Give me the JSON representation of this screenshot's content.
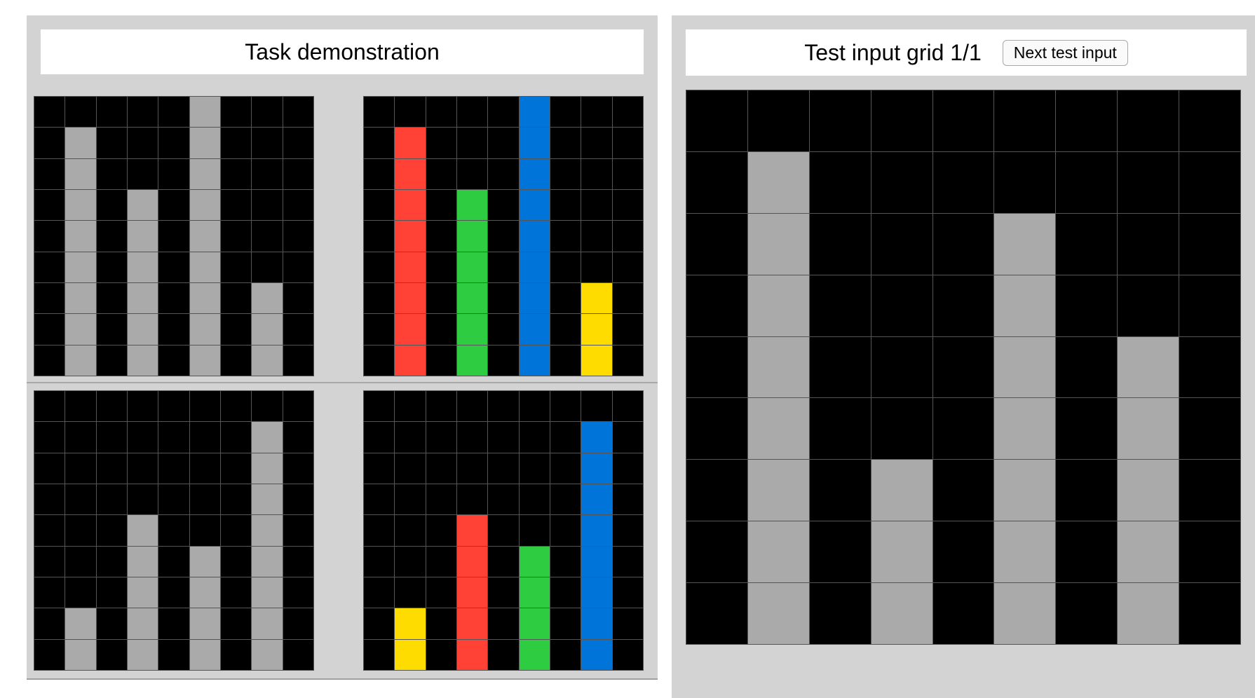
{
  "demo_panel": {
    "title": "Task demonstration"
  },
  "test_panel": {
    "title": "Test input grid 1/1",
    "next_button_label": "Next test input"
  },
  "palette": {
    "0": "#000000",
    "1": "#0074d9",
    "2": "#ff4136",
    "3": "#2ecc40",
    "4": "#ffdc00",
    "5": "#aaaaaa"
  },
  "grids": {
    "demo_pair1_input": [
      [
        0,
        0,
        0,
        0,
        0,
        5,
        0,
        0,
        0
      ],
      [
        0,
        5,
        0,
        0,
        0,
        5,
        0,
        0,
        0
      ],
      [
        0,
        5,
        0,
        0,
        0,
        5,
        0,
        0,
        0
      ],
      [
        0,
        5,
        0,
        5,
        0,
        5,
        0,
        0,
        0
      ],
      [
        0,
        5,
        0,
        5,
        0,
        5,
        0,
        0,
        0
      ],
      [
        0,
        5,
        0,
        5,
        0,
        5,
        0,
        0,
        0
      ],
      [
        0,
        5,
        0,
        5,
        0,
        5,
        0,
        5,
        0
      ],
      [
        0,
        5,
        0,
        5,
        0,
        5,
        0,
        5,
        0
      ],
      [
        0,
        5,
        0,
        5,
        0,
        5,
        0,
        5,
        0
      ]
    ],
    "demo_pair1_output": [
      [
        0,
        0,
        0,
        0,
        0,
        1,
        0,
        0,
        0
      ],
      [
        0,
        2,
        0,
        0,
        0,
        1,
        0,
        0,
        0
      ],
      [
        0,
        2,
        0,
        0,
        0,
        1,
        0,
        0,
        0
      ],
      [
        0,
        2,
        0,
        3,
        0,
        1,
        0,
        0,
        0
      ],
      [
        0,
        2,
        0,
        3,
        0,
        1,
        0,
        0,
        0
      ],
      [
        0,
        2,
        0,
        3,
        0,
        1,
        0,
        0,
        0
      ],
      [
        0,
        2,
        0,
        3,
        0,
        1,
        0,
        4,
        0
      ],
      [
        0,
        2,
        0,
        3,
        0,
        1,
        0,
        4,
        0
      ],
      [
        0,
        2,
        0,
        3,
        0,
        1,
        0,
        4,
        0
      ]
    ],
    "demo_pair2_input": [
      [
        0,
        0,
        0,
        0,
        0,
        0,
        0,
        0,
        0
      ],
      [
        0,
        0,
        0,
        0,
        0,
        0,
        0,
        5,
        0
      ],
      [
        0,
        0,
        0,
        0,
        0,
        0,
        0,
        5,
        0
      ],
      [
        0,
        0,
        0,
        0,
        0,
        0,
        0,
        5,
        0
      ],
      [
        0,
        0,
        0,
        5,
        0,
        0,
        0,
        5,
        0
      ],
      [
        0,
        0,
        0,
        5,
        0,
        5,
        0,
        5,
        0
      ],
      [
        0,
        0,
        0,
        5,
        0,
        5,
        0,
        5,
        0
      ],
      [
        0,
        5,
        0,
        5,
        0,
        5,
        0,
        5,
        0
      ],
      [
        0,
        5,
        0,
        5,
        0,
        5,
        0,
        5,
        0
      ]
    ],
    "demo_pair2_output": [
      [
        0,
        0,
        0,
        0,
        0,
        0,
        0,
        0,
        0
      ],
      [
        0,
        0,
        0,
        0,
        0,
        0,
        0,
        1,
        0
      ],
      [
        0,
        0,
        0,
        0,
        0,
        0,
        0,
        1,
        0
      ],
      [
        0,
        0,
        0,
        0,
        0,
        0,
        0,
        1,
        0
      ],
      [
        0,
        0,
        0,
        2,
        0,
        0,
        0,
        1,
        0
      ],
      [
        0,
        0,
        0,
        2,
        0,
        3,
        0,
        1,
        0
      ],
      [
        0,
        0,
        0,
        2,
        0,
        3,
        0,
        1,
        0
      ],
      [
        0,
        4,
        0,
        2,
        0,
        3,
        0,
        1,
        0
      ],
      [
        0,
        4,
        0,
        2,
        0,
        3,
        0,
        1,
        0
      ]
    ],
    "test_input": [
      [
        0,
        0,
        0,
        0,
        0,
        0,
        0,
        0,
        0
      ],
      [
        0,
        5,
        0,
        0,
        0,
        0,
        0,
        0,
        0
      ],
      [
        0,
        5,
        0,
        0,
        0,
        5,
        0,
        0,
        0
      ],
      [
        0,
        5,
        0,
        0,
        0,
        5,
        0,
        0,
        0
      ],
      [
        0,
        5,
        0,
        0,
        0,
        5,
        0,
        5,
        0
      ],
      [
        0,
        5,
        0,
        0,
        0,
        5,
        0,
        5,
        0
      ],
      [
        0,
        5,
        0,
        5,
        0,
        5,
        0,
        5,
        0
      ],
      [
        0,
        5,
        0,
        5,
        0,
        5,
        0,
        5,
        0
      ],
      [
        0,
        5,
        0,
        5,
        0,
        5,
        0,
        5,
        0
      ]
    ]
  }
}
